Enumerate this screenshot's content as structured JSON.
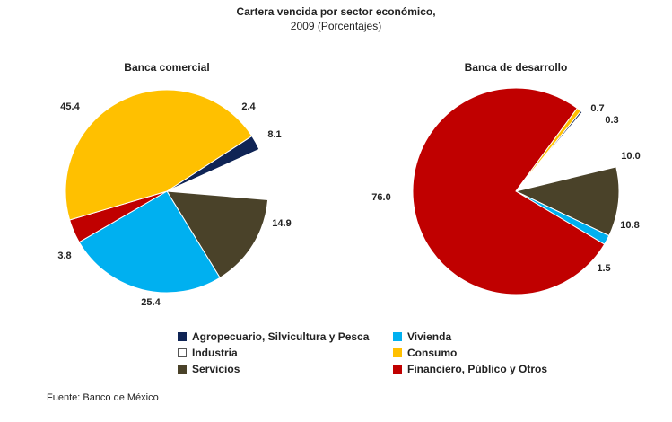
{
  "title": "Cartera vencida por sector económico,",
  "subtitle": "2009 (Porcentajes)",
  "source": "Fuente: Banco de México",
  "legend": [
    {
      "label": "Agropecuario, Silvicultura y Pesca",
      "color": "#0f2455"
    },
    {
      "label": "Vivienda",
      "color": "#00b0f0"
    },
    {
      "label": "Industria",
      "color": "#ffffff"
    },
    {
      "label": "Consumo",
      "color": "#ffc000"
    },
    {
      "label": "Servicios",
      "color": "#4a4229"
    },
    {
      "label": "Financiero, Público y Otros",
      "color": "#c00000"
    }
  ],
  "chart_data": [
    {
      "type": "pie",
      "title": "Banca comercial",
      "slices": [
        {
          "category": "Agropecuario, Silvicultura y Pesca",
          "value": 2.4,
          "label": "2.4",
          "color": "#0f2455"
        },
        {
          "category": "Industria",
          "value": 8.1,
          "label": "8.1",
          "color": "#ffffff"
        },
        {
          "category": "Servicios",
          "value": 14.9,
          "label": "14.9",
          "color": "#4a4229"
        },
        {
          "category": "Vivienda",
          "value": 25.4,
          "label": "25.4",
          "color": "#00b0f0"
        },
        {
          "category": "Financiero, Público y Otros",
          "value": 3.8,
          "label": "3.8",
          "color": "#c00000"
        },
        {
          "category": "Consumo",
          "value": 45.4,
          "label": "45.4",
          "color": "#ffc000"
        }
      ]
    },
    {
      "type": "pie",
      "title": "Banca de desarrollo",
      "slices": [
        {
          "category": "Agropecuario, Silvicultura y Pesca",
          "value": 0.3,
          "label": "0.3",
          "color": "#0f2455"
        },
        {
          "category": "Industria",
          "value": 10.0,
          "label": "10.0",
          "color": "#ffffff"
        },
        {
          "category": "Servicios",
          "value": 10.8,
          "label": "10.8",
          "color": "#4a4229"
        },
        {
          "category": "Vivienda",
          "value": 1.5,
          "label": "1.5",
          "color": "#00b0f0"
        },
        {
          "category": "Financiero, Público y Otros",
          "value": 76.0,
          "label": "76.0",
          "color": "#c00000"
        },
        {
          "category": "Consumo",
          "value": 0.7,
          "label": "0.7",
          "color": "#ffc000"
        }
      ]
    }
  ]
}
